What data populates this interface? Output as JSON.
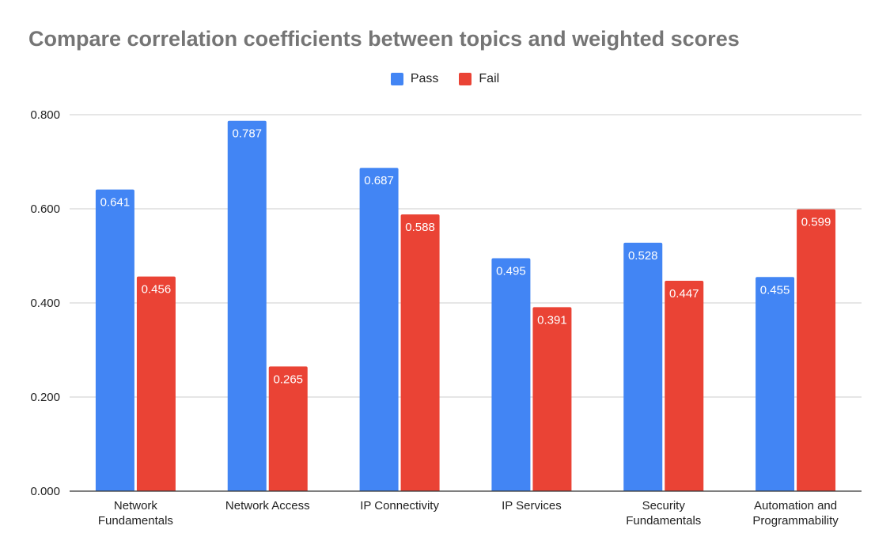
{
  "chart_data": {
    "type": "bar",
    "title": "Compare correlation coefficients between topics and weighted scores",
    "categories": [
      [
        "Network",
        "Fundamentals"
      ],
      [
        "Network Access"
      ],
      [
        "IP Connectivity"
      ],
      [
        "IP Services"
      ],
      [
        "Security",
        "Fundamentals"
      ],
      [
        "Automation and",
        "Programmability"
      ]
    ],
    "series": [
      {
        "name": "Pass",
        "color": "#4285f4",
        "values": [
          0.641,
          0.787,
          0.687,
          0.495,
          0.528,
          0.455
        ],
        "labels": [
          "0.641",
          "0.787",
          "0.687",
          "0.495",
          "0.528",
          "0.455"
        ]
      },
      {
        "name": "Fail",
        "color": "#ea4335",
        "values": [
          0.456,
          0.265,
          0.588,
          0.391,
          0.447,
          0.599
        ],
        "labels": [
          "0.456",
          "0.265",
          "0.588",
          "0.391",
          "0.447",
          "0.599"
        ]
      }
    ],
    "ylim": [
      0,
      0.8
    ],
    "yticks": [
      {
        "value": 0,
        "label": "0.000"
      },
      {
        "value": 0.2,
        "label": "0.200"
      },
      {
        "value": 0.4,
        "label": "0.400"
      },
      {
        "value": 0.6,
        "label": "0.600"
      },
      {
        "value": 0.8,
        "label": "0.800"
      }
    ],
    "xlabel": "",
    "ylabel": "",
    "legend_position": "top-center",
    "grid": true
  }
}
